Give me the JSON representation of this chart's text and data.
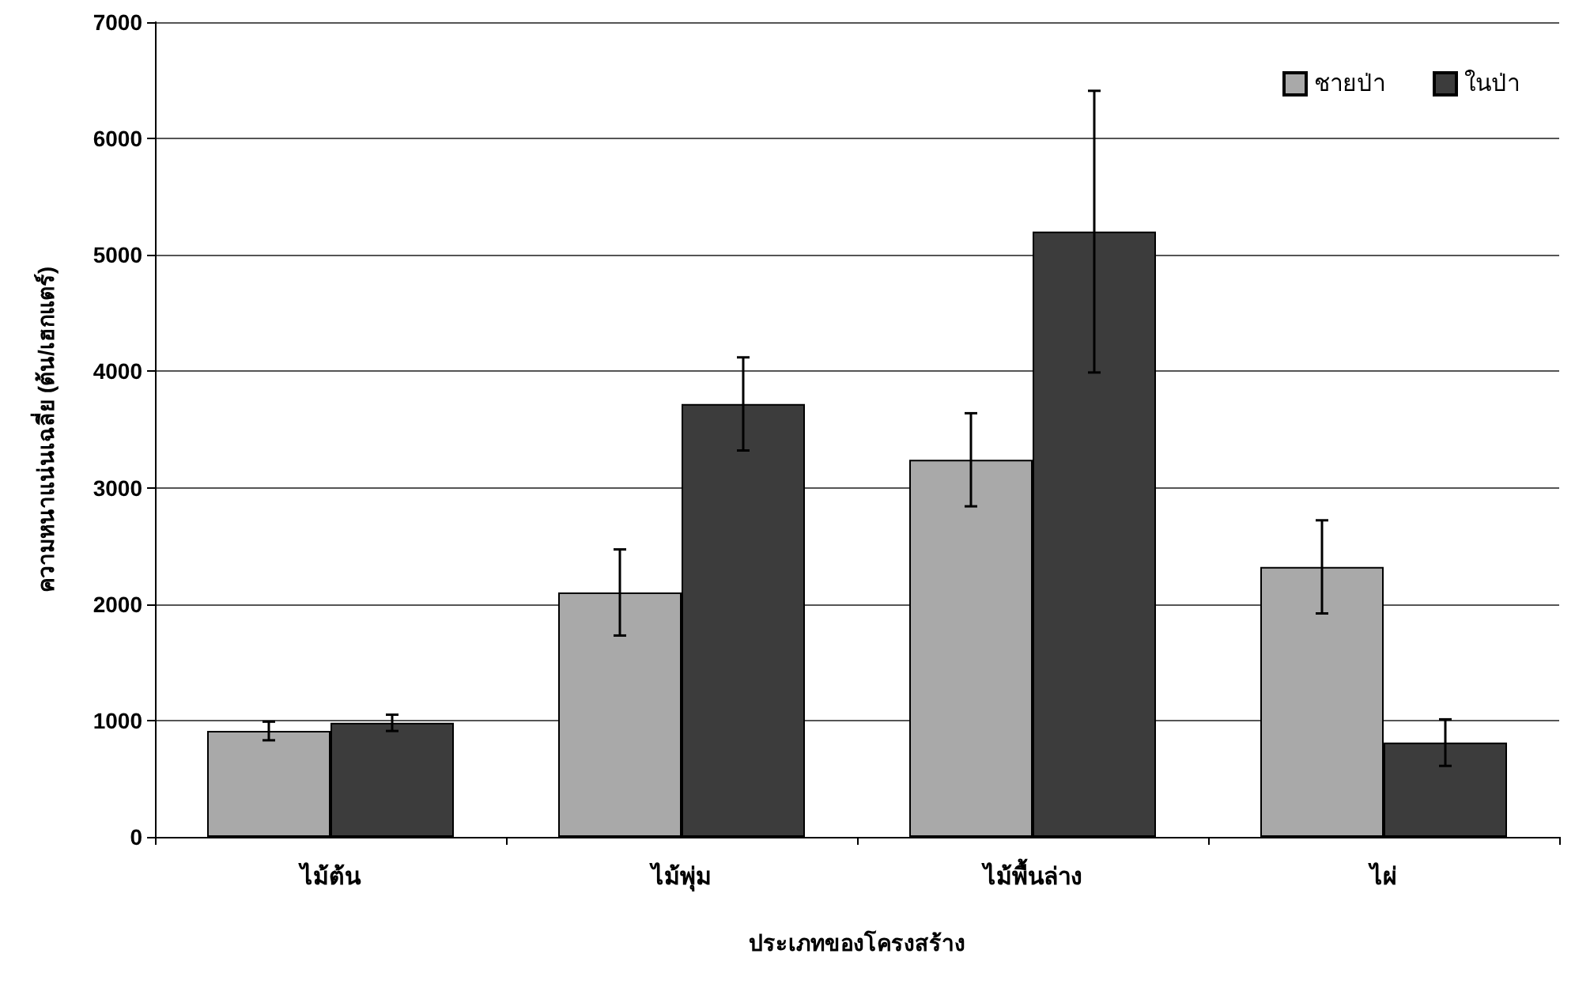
{
  "chart_data": {
    "type": "bar",
    "xlabel": "ประเภทของโครงสร้าง",
    "ylabel": "ความหนาแน่นเฉลี่ย (ต้น/เฮกแตร์)",
    "categories": [
      "ไม้ต้น",
      "ไม้พุ่ม",
      "ไม้พื้นล่าง",
      "ไผ่"
    ],
    "series": [
      {
        "name": "ชายป่า",
        "color": "#a9a9a9",
        "values": [
          910,
          2100,
          3240,
          2320
        ],
        "errors": [
          80,
          370,
          400,
          400
        ]
      },
      {
        "name": "ในป่า",
        "color": "#3c3c3c",
        "values": [
          980,
          3720,
          5200,
          810
        ],
        "errors": [
          70,
          400,
          1210,
          200
        ]
      }
    ],
    "ylim": [
      0,
      7000
    ],
    "yticks": [
      0,
      1000,
      2000,
      3000,
      4000,
      5000,
      6000,
      7000
    ],
    "grid": "y",
    "legend": "top right"
  }
}
